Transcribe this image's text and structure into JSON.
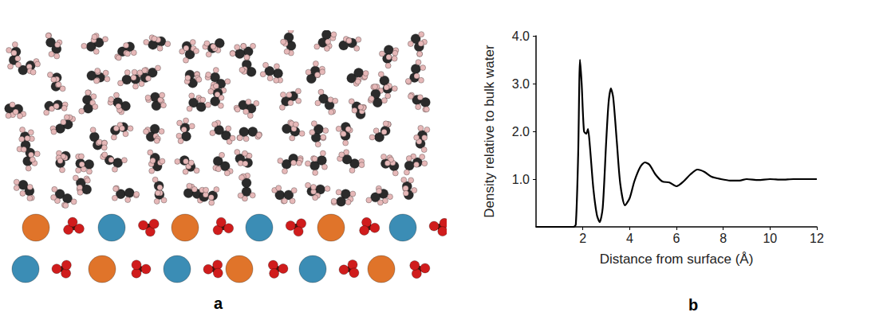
{
  "snapshot": {
    "label": "a"
  },
  "chart_data": {
    "type": "line",
    "label": "b",
    "x_label": "Distance from surface (Å)",
    "y_label": "Density relative to bulk water",
    "x": [
      0,
      1.6,
      1.7,
      1.8,
      1.88,
      1.95,
      2.05,
      2.15,
      2.22,
      2.3,
      2.45,
      2.6,
      2.72,
      2.85,
      3.0,
      3.1,
      3.2,
      3.3,
      3.45,
      3.6,
      3.8,
      4.0,
      4.2,
      4.45,
      4.65,
      4.85,
      5.1,
      5.4,
      5.7,
      6.0,
      6.3,
      6.6,
      6.9,
      7.2,
      7.5,
      7.9,
      8.3,
      8.7,
      9.0,
      9.5,
      10.0,
      10.5,
      11.0,
      11.5,
      12.0
    ],
    "values": [
      0,
      0,
      0.05,
      1.5,
      3.5,
      3.0,
      2.0,
      1.95,
      2.05,
      1.7,
      0.8,
      0.25,
      0.1,
      0.4,
      1.8,
      2.6,
      2.9,
      2.7,
      1.8,
      0.9,
      0.45,
      0.6,
      0.95,
      1.25,
      1.35,
      1.3,
      1.1,
      0.95,
      0.93,
      0.85,
      0.95,
      1.1,
      1.2,
      1.15,
      1.05,
      1.0,
      0.97,
      0.97,
      1.0,
      0.98,
      1.0,
      0.99,
      1.0,
      1.0,
      1.0
    ],
    "color": "#000000",
    "xlim": [
      0,
      12
    ],
    "xticks": [
      2,
      4,
      6,
      8,
      10,
      12
    ],
    "ylim": [
      0,
      4
    ],
    "yticks": [
      {
        "value": 1,
        "label": "1.0"
      },
      {
        "value": 2,
        "label": "2.0"
      },
      {
        "value": 3,
        "label": "3.0"
      },
      {
        "value": 4,
        "label": "4.0"
      }
    ],
    "grid": false
  }
}
